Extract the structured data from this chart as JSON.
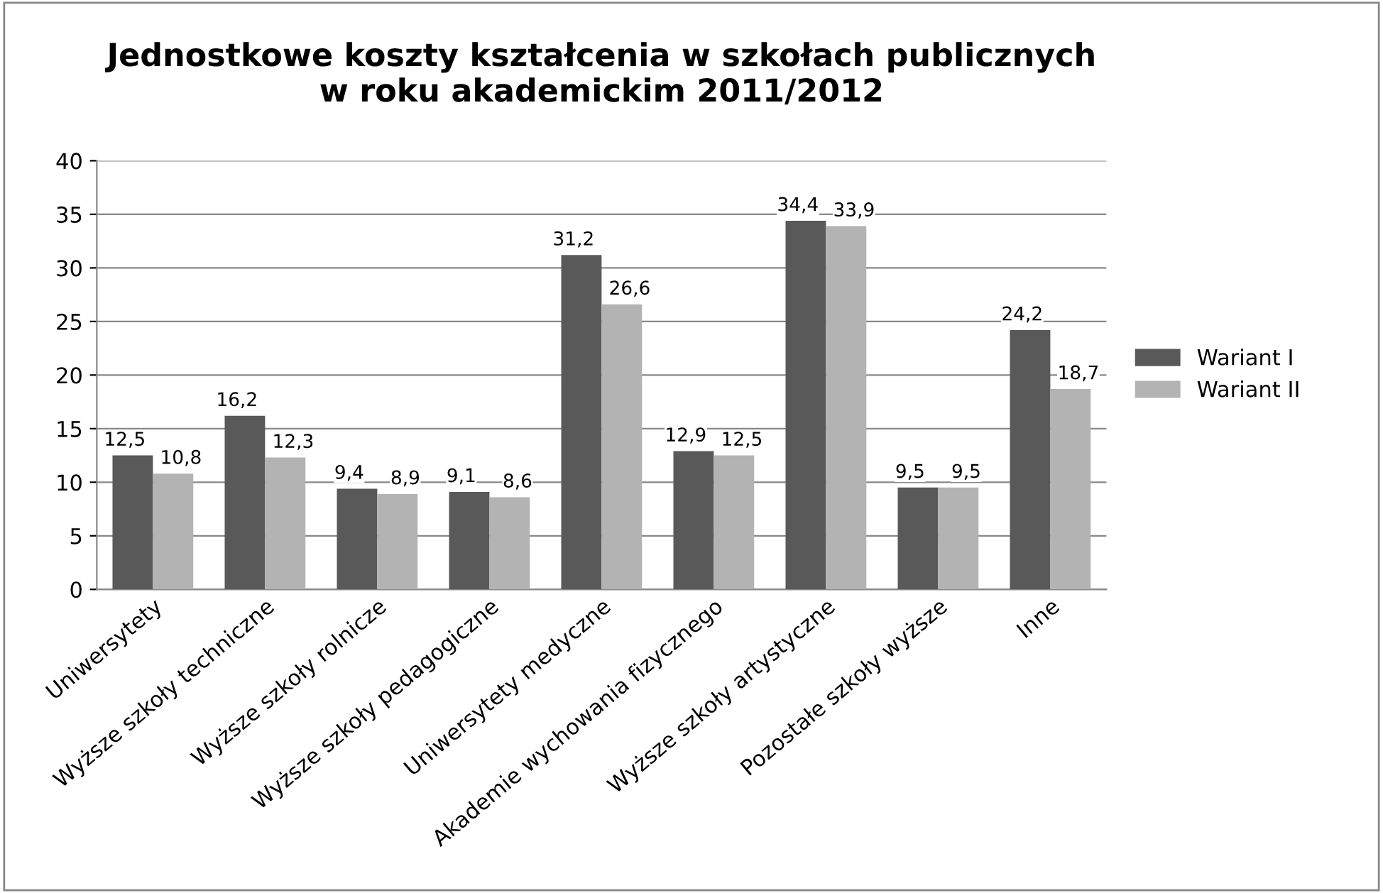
{
  "chart_data": {
    "type": "bar",
    "title": "Jednostkowe koszty kształcenia w szkołach publicznych\nw roku akademickim 2011/2012",
    "categories": [
      "Uniwersytety",
      "Wyższe szkoły techniczne",
      "Wyższe szkoły rolnicze",
      "Wyższe szkoły pedagogiczne",
      "Uniwersytety medyczne",
      "Akademie wychowania fizycznego",
      "Wyższe szkoły artystyczne",
      "Pozostałe szkoły wyższe",
      "Inne"
    ],
    "series": [
      {
        "name": "Wariant I",
        "color": "#595959",
        "values": [
          12.5,
          16.2,
          9.4,
          9.1,
          31.2,
          12.9,
          34.4,
          9.5,
          24.2
        ],
        "value_labels": [
          "12,5",
          "16,2",
          "9,4",
          "9,1",
          "31,2",
          "12,9",
          "34,4",
          "9,5",
          "24,2"
        ]
      },
      {
        "name": "Wariant II",
        "color": "#b3b3b3",
        "values": [
          10.8,
          12.3,
          8.9,
          8.6,
          26.6,
          12.5,
          33.9,
          9.5,
          18.7
        ],
        "value_labels": [
          "10,8",
          "12,3",
          "8,9",
          "8,6",
          "26,6",
          "12,5",
          "33,9",
          "9,5",
          "18,7"
        ]
      }
    ],
    "ylim": [
      0,
      40
    ],
    "yticks": [
      0,
      5,
      10,
      15,
      20,
      25,
      30,
      35,
      40
    ],
    "grid": "y",
    "legend": "right"
  }
}
